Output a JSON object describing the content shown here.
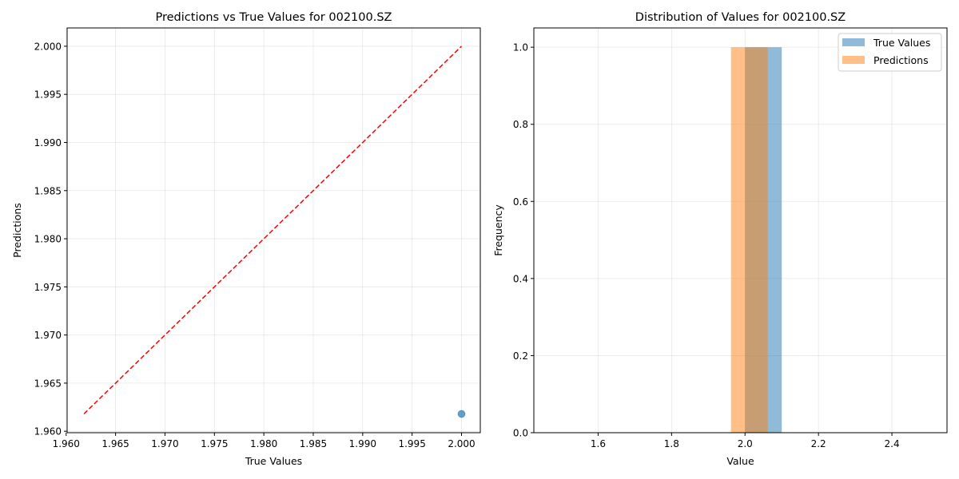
{
  "chart_data": [
    {
      "type": "scatter",
      "title": "Predictions vs True Values for 002100.SZ",
      "xlabel": "True Values",
      "ylabel": "Predictions",
      "xlim": [
        1.9601,
        2.0019
      ],
      "ylim": [
        1.95985,
        2.0019
      ],
      "xticks": [
        1.96,
        1.965,
        1.97,
        1.975,
        1.98,
        1.985,
        1.99,
        1.995,
        2.0
      ],
      "xtick_labels": [
        "1.960",
        "1.965",
        "1.970",
        "1.975",
        "1.980",
        "1.985",
        "1.990",
        "1.995",
        "2.000"
      ],
      "yticks": [
        1.96,
        1.965,
        1.97,
        1.975,
        1.98,
        1.985,
        1.99,
        1.995,
        2.0
      ],
      "ytick_labels": [
        "1.960",
        "1.965",
        "1.970",
        "1.975",
        "1.980",
        "1.985",
        "1.990",
        "1.995",
        "2.000"
      ],
      "grid": true,
      "points": [
        {
          "x": 2.0,
          "y": 1.9618
        }
      ],
      "point_color": "#1f77b4",
      "reference_line": {
        "x": [
          1.9618,
          2.0
        ],
        "y": [
          1.9618,
          2.0
        ],
        "color": "#ff0000",
        "style": "dashed"
      }
    },
    {
      "type": "bar",
      "subtype": "histogram",
      "title": "Distribution of Values for 002100.SZ",
      "xlabel": "Value",
      "ylabel": "Frequency",
      "xlim": [
        1.425,
        2.55
      ],
      "ylim": [
        0,
        1.05
      ],
      "xticks": [
        1.6,
        1.8,
        2.0,
        2.2,
        2.4
      ],
      "xtick_labels": [
        "1.6",
        "1.8",
        "2.0",
        "2.2",
        "2.4"
      ],
      "yticks": [
        0.0,
        0.2,
        0.4,
        0.6,
        0.8,
        1.0
      ],
      "ytick_labels": [
        "0.0",
        "0.2",
        "0.4",
        "0.6",
        "0.8",
        "1.0"
      ],
      "grid": true,
      "legend_position": "top-right",
      "series": [
        {
          "name": "True Values",
          "color": "#1f77b4",
          "bins": [
            {
              "start": 2.0,
              "end": 2.1,
              "count": 1
            }
          ]
        },
        {
          "name": "Predictions",
          "color": "#ff7f0e",
          "bins": [
            {
              "start": 1.9618,
              "end": 2.0618,
              "count": 1
            }
          ]
        }
      ]
    }
  ]
}
